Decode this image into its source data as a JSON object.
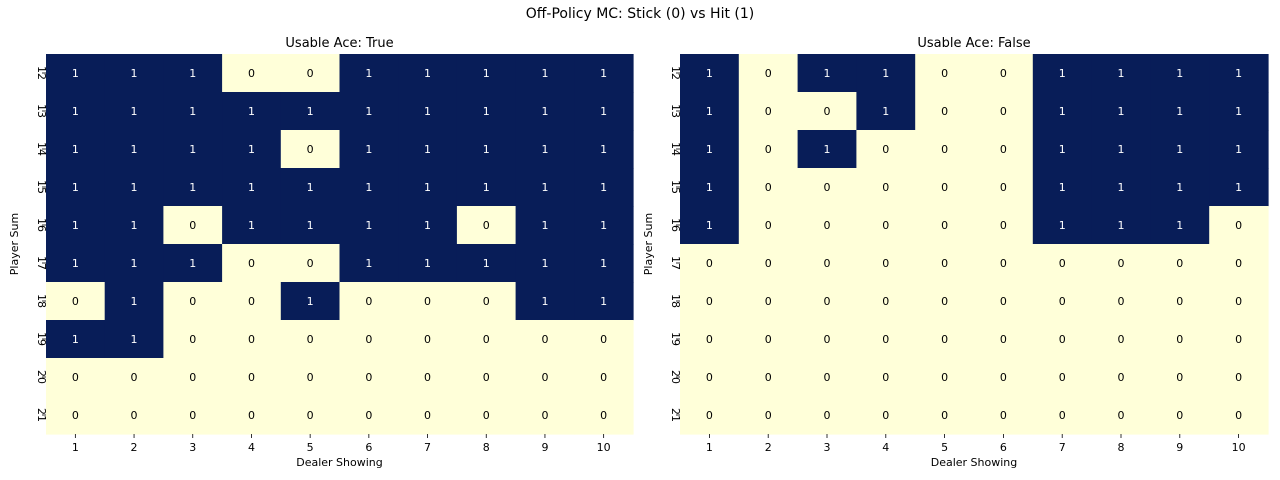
{
  "figure": {
    "title": "Off-Policy MC: Stick (0) vs Hit (1)",
    "colors": {
      "hit": "#081d58",
      "stick": "#ffffd9",
      "text_on_hit": "#ffffff",
      "text_on_stick": "#000000"
    }
  },
  "chart_data": [
    {
      "type": "heatmap",
      "title": "Usable Ace: True",
      "xlabel": "Dealer Showing",
      "ylabel": "Player Sum",
      "x": [
        "1",
        "2",
        "3",
        "4",
        "5",
        "6",
        "7",
        "8",
        "9",
        "10"
      ],
      "y": [
        "12",
        "13",
        "14",
        "15",
        "16",
        "17",
        "18",
        "19",
        "20",
        "21"
      ],
      "grid": false,
      "values": [
        [
          1,
          1,
          1,
          0,
          0,
          1,
          1,
          1,
          1,
          1
        ],
        [
          1,
          1,
          1,
          1,
          1,
          1,
          1,
          1,
          1,
          1
        ],
        [
          1,
          1,
          1,
          1,
          0,
          1,
          1,
          1,
          1,
          1
        ],
        [
          1,
          1,
          1,
          1,
          1,
          1,
          1,
          1,
          1,
          1
        ],
        [
          1,
          1,
          0,
          1,
          1,
          1,
          1,
          0,
          1,
          1
        ],
        [
          1,
          1,
          1,
          0,
          0,
          1,
          1,
          1,
          1,
          1
        ],
        [
          0,
          1,
          0,
          0,
          1,
          0,
          0,
          0,
          1,
          1
        ],
        [
          1,
          1,
          0,
          0,
          0,
          0,
          0,
          0,
          0,
          0
        ],
        [
          0,
          0,
          0,
          0,
          0,
          0,
          0,
          0,
          0,
          0
        ],
        [
          0,
          0,
          0,
          0,
          0,
          0,
          0,
          0,
          0,
          0
        ]
      ]
    },
    {
      "type": "heatmap",
      "title": "Usable Ace: False",
      "xlabel": "Dealer Showing",
      "ylabel": "Player Sum",
      "x": [
        "1",
        "2",
        "3",
        "4",
        "5",
        "6",
        "7",
        "8",
        "9",
        "10"
      ],
      "y": [
        "12",
        "13",
        "14",
        "15",
        "16",
        "17",
        "18",
        "19",
        "20",
        "21"
      ],
      "grid": false,
      "values": [
        [
          1,
          0,
          1,
          1,
          0,
          0,
          1,
          1,
          1,
          1
        ],
        [
          1,
          0,
          0,
          1,
          0,
          0,
          1,
          1,
          1,
          1
        ],
        [
          1,
          0,
          1,
          0,
          0,
          0,
          1,
          1,
          1,
          1
        ],
        [
          1,
          0,
          0,
          0,
          0,
          0,
          1,
          1,
          1,
          1
        ],
        [
          1,
          0,
          0,
          0,
          0,
          0,
          1,
          1,
          1,
          0
        ],
        [
          0,
          0,
          0,
          0,
          0,
          0,
          0,
          0,
          0,
          0
        ],
        [
          0,
          0,
          0,
          0,
          0,
          0,
          0,
          0,
          0,
          0
        ],
        [
          0,
          0,
          0,
          0,
          0,
          0,
          0,
          0,
          0,
          0
        ],
        [
          0,
          0,
          0,
          0,
          0,
          0,
          0,
          0,
          0,
          0
        ],
        [
          0,
          0,
          0,
          0,
          0,
          0,
          0,
          0,
          0,
          0
        ]
      ]
    }
  ]
}
